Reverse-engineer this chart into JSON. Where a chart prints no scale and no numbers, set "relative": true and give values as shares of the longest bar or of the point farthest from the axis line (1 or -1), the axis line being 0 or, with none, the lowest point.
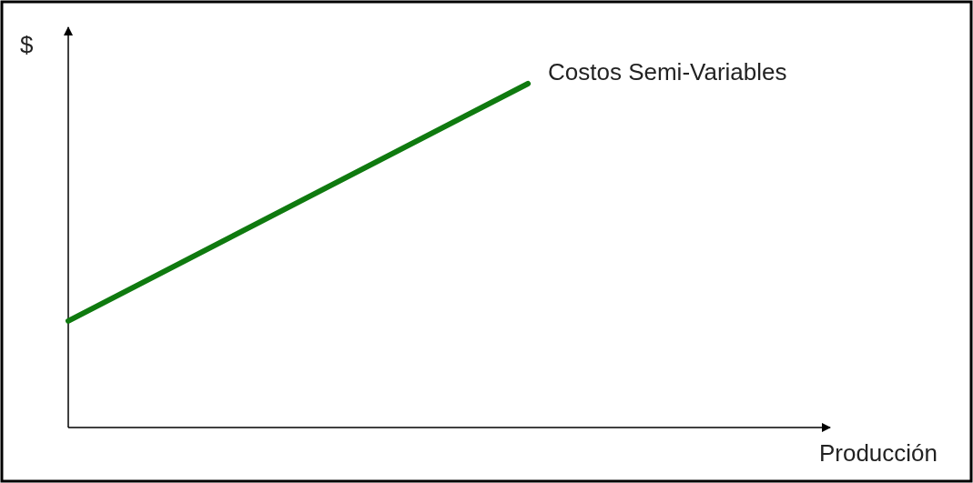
{
  "chart_data": {
    "type": "line",
    "relative": true,
    "xlabel": "Producción",
    "ylabel": "$",
    "categories": [
      null,
      null
    ],
    "marker": "none",
    "line_style": "solid",
    "series": [
      {
        "name": "Costos Semi-Variables",
        "color": "#0f7a0f",
        "values": [
          0.31,
          1
        ]
      }
    ]
  }
}
